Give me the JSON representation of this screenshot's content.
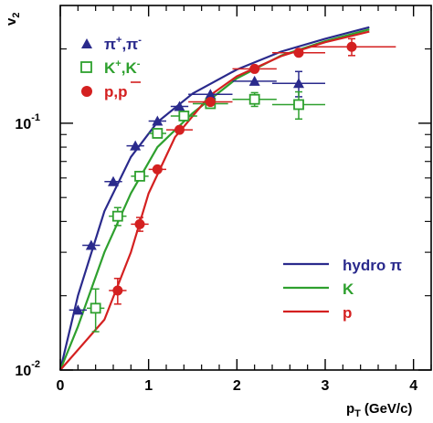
{
  "chart_data": {
    "type": "scatter",
    "xlabel": "p",
    "xlabel_sub": "T",
    "xlabel_unit": "(GeV/c)",
    "ylabel": "v",
    "ylabel_sub": "2",
    "xlim": [
      0,
      4.2
    ],
    "ylim": [
      0.01,
      0.3
    ],
    "yscale": "log",
    "x_ticks": [
      {
        "value": 0,
        "label": "0"
      },
      {
        "value": 1,
        "label": "1"
      },
      {
        "value": 2,
        "label": "2"
      },
      {
        "value": 3,
        "label": "3"
      },
      {
        "value": 4,
        "label": "4"
      }
    ],
    "y_ticks": [
      {
        "value": 0.01,
        "base": "10",
        "exp": "-2"
      },
      {
        "value": 0.1,
        "base": "10",
        "exp": "-1"
      }
    ],
    "data_series": [
      {
        "name_main": "π",
        "name_sup1": "+",
        "name_sep": ",π",
        "name_sup2": "-",
        "marker": "triangle",
        "color": "#2a2a8c",
        "points": [
          {
            "x": 0.2,
            "y": 0.0175,
            "xerr": 0.1,
            "yerr": 0.0
          },
          {
            "x": 0.35,
            "y": 0.032,
            "xerr": 0.1,
            "yerr": 0.0
          },
          {
            "x": 0.6,
            "y": 0.058,
            "xerr": 0.1,
            "yerr": 0.0
          },
          {
            "x": 0.85,
            "y": 0.081,
            "xerr": 0.1,
            "yerr": 0.0
          },
          {
            "x": 1.1,
            "y": 0.102,
            "xerr": 0.1,
            "yerr": 0.0
          },
          {
            "x": 1.35,
            "y": 0.117,
            "xerr": 0.1,
            "yerr": 0.0
          },
          {
            "x": 1.7,
            "y": 0.131,
            "xerr": 0.25,
            "yerr": 0.0
          },
          {
            "x": 2.2,
            "y": 0.148,
            "xerr": 0.25,
            "yerr": 0.0
          },
          {
            "x": 2.7,
            "y": 0.145,
            "xerr": 0.3,
            "yerr": 0.017
          }
        ]
      },
      {
        "name_main": "K",
        "name_sup1": "+",
        "name_sep": ",K",
        "name_sup2": "-",
        "marker": "open-square",
        "color": "#2ea02e",
        "points": [
          {
            "x": 0.4,
            "y": 0.0178,
            "xerr": 0.1,
            "yerr": 0.0035
          },
          {
            "x": 0.65,
            "y": 0.042,
            "xerr": 0.1,
            "yerr": 0.0035
          },
          {
            "x": 0.9,
            "y": 0.061,
            "xerr": 0.1,
            "yerr": 0.0
          },
          {
            "x": 1.1,
            "y": 0.091,
            "xerr": 0.1,
            "yerr": 0.0
          },
          {
            "x": 1.4,
            "y": 0.107,
            "xerr": 0.15,
            "yerr": 0.0
          },
          {
            "x": 1.7,
            "y": 0.12,
            "xerr": 0.2,
            "yerr": 0.0
          },
          {
            "x": 2.2,
            "y": 0.125,
            "xerr": 0.25,
            "yerr": 0.008
          },
          {
            "x": 2.7,
            "y": 0.119,
            "xerr": 0.3,
            "yerr": 0.015
          }
        ]
      },
      {
        "name_main": "p,p",
        "name_bar": "p",
        "marker": "circle",
        "color": "#d42020",
        "points": [
          {
            "x": 0.65,
            "y": 0.021,
            "xerr": 0.1,
            "yerr": 0.0025
          },
          {
            "x": 0.9,
            "y": 0.039,
            "xerr": 0.1,
            "yerr": 0.0025
          },
          {
            "x": 1.1,
            "y": 0.065,
            "xerr": 0.1,
            "yerr": 0.0
          },
          {
            "x": 1.35,
            "y": 0.094,
            "xerr": 0.15,
            "yerr": 0.0
          },
          {
            "x": 1.7,
            "y": 0.122,
            "xerr": 0.25,
            "yerr": 0.0
          },
          {
            "x": 2.2,
            "y": 0.166,
            "xerr": 0.25,
            "yerr": 0.0
          },
          {
            "x": 2.7,
            "y": 0.193,
            "xerr": 0.3,
            "yerr": 0.0
          },
          {
            "x": 3.3,
            "y": 0.204,
            "xerr": 0.5,
            "yerr": 0.016
          }
        ]
      }
    ],
    "curves": [
      {
        "label_main": "hydro",
        "label_sym": "π",
        "color": "#2a2a8c",
        "x": [
          0,
          0.2,
          0.5,
          0.8,
          1.1,
          1.5,
          2.0,
          2.5,
          3.0,
          3.5
        ],
        "y": [
          0.01,
          0.02,
          0.044,
          0.073,
          0.101,
          0.132,
          0.165,
          0.195,
          0.22,
          0.245
        ]
      },
      {
        "label_main": "K",
        "label_sym": "",
        "color": "#2ea02e",
        "x": [
          0,
          0.2,
          0.5,
          0.8,
          1.1,
          1.5,
          2.0,
          2.5,
          3.0,
          3.5
        ],
        "y": [
          0.01,
          0.015,
          0.03,
          0.052,
          0.08,
          0.11,
          0.152,
          0.188,
          0.215,
          0.24
        ]
      },
      {
        "label_main": "p",
        "label_sym": "",
        "color": "#d42020",
        "x": [
          0,
          0.5,
          0.8,
          1.0,
          1.3,
          1.7,
          2.0,
          2.5,
          3.0,
          3.5
        ],
        "y": [
          0.01,
          0.016,
          0.03,
          0.052,
          0.088,
          0.13,
          0.155,
          0.187,
          0.213,
          0.235
        ]
      }
    ]
  }
}
